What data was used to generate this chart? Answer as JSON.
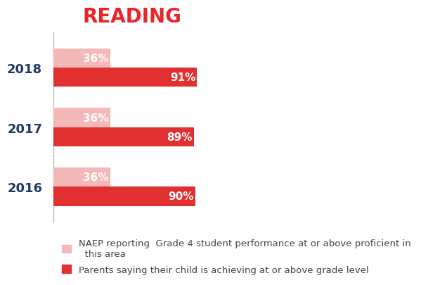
{
  "title": "READING",
  "title_color": "#e8262a",
  "title_fontsize": 20,
  "title_fontweight": "bold",
  "years": [
    "2018",
    "2017",
    "2016"
  ],
  "naep_values": [
    36,
    36,
    36
  ],
  "parent_values": [
    91,
    89,
    90
  ],
  "naep_color": "#f4b8b8",
  "parent_color": "#e03030",
  "naep_label": "NAEP reporting  Grade 4 student performance at or above proficient in\n  this area",
  "parent_label": "Parents saying their child is achieving at or above grade level",
  "bar_label_color": "white",
  "bar_label_fontsize": 11,
  "year_label_fontsize": 13,
  "year_label_fontweight": "bold",
  "year_label_color": "#1f3864",
  "xlim": [
    0,
    100
  ],
  "bar_height": 0.32,
  "legend_fontsize": 9.5,
  "background_color": "#ffffff",
  "spine_color": "#bbbbbb"
}
